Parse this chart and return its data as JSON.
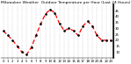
{
  "title": "Milwaukee Weather  Outdoor Temperature per Hour (Last 24 Hours)",
  "hours": [
    0,
    1,
    2,
    3,
    4,
    5,
    6,
    7,
    8,
    9,
    10,
    11,
    12,
    13,
    14,
    15,
    16,
    17,
    18,
    19,
    20,
    21,
    22,
    23
  ],
  "temps": [
    28,
    24,
    20,
    15,
    10,
    8,
    14,
    24,
    34,
    42,
    46,
    43,
    34,
    28,
    30,
    28,
    24,
    32,
    36,
    32,
    24,
    20,
    20,
    20
  ],
  "line_color": "#ff0000",
  "marker_color": "#000000",
  "bg_color": "#ffffff",
  "grid_color": "#999999",
  "ylim_min": 5,
  "ylim_max": 50,
  "ytick_labels": [
    "10",
    "15",
    "20",
    "25",
    "30",
    "35",
    "40",
    "45"
  ],
  "ytick_values": [
    10,
    15,
    20,
    25,
    30,
    35,
    40,
    45
  ],
  "title_fontsize": 3.2,
  "tick_fontsize": 2.8,
  "line_width": 0.9,
  "marker_size": 1.8
}
